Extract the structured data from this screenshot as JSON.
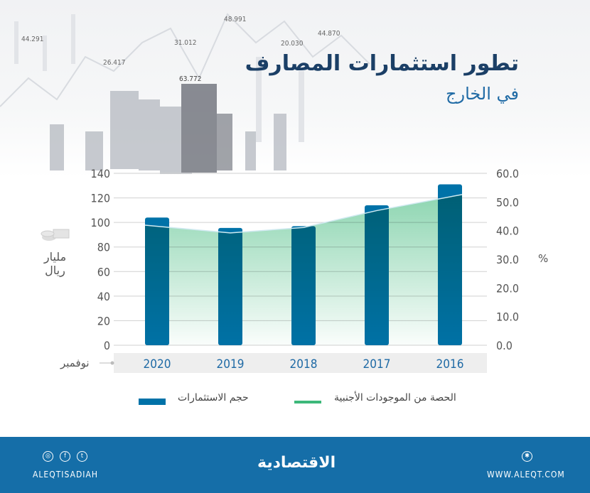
{
  "header": {
    "title": "تطور استثمارات المصارف",
    "subtitle": "في الخارج",
    "background_numbers": [
      "44.291",
      "26.417",
      "48.991",
      "31.012",
      "63.772",
      "44.870",
      "20.030"
    ]
  },
  "chart_data": {
    "type": "bar+area",
    "title": "تطور استثمارات المصارف في الخارج",
    "categories": [
      "2020",
      "2019",
      "2018",
      "2017",
      "2016"
    ],
    "xlabel": "نوفمبر",
    "ylabel": "مليار ريال",
    "y2label": "%",
    "ylim": [
      0,
      140
    ],
    "yticks": [
      "0",
      "20",
      "40",
      "60",
      "80",
      "100",
      "120",
      "140"
    ],
    "y2lim": [
      0,
      60
    ],
    "y2ticks": [
      "0.0",
      "10.0",
      "20.0",
      "30.0",
      "40.0",
      "50.0",
      "60.0"
    ],
    "grid": true,
    "legend_position": "bottom",
    "series": [
      {
        "name": "حجم الاستثمارات",
        "type": "bar",
        "axis": "left",
        "color": "#0072a8",
        "values": [
          104,
          95.5,
          97,
          114,
          131
        ]
      },
      {
        "name": "الحصة من الموجودات الأجنبية",
        "type": "area",
        "axis": "right",
        "color": "#3db87a",
        "values": [
          41.9,
          39.2,
          41.1,
          47.0,
          52.6
        ]
      }
    ]
  },
  "footer": {
    "handle": "ALEQTISADIAH",
    "logo": "الاقتصادية",
    "website": "WWW.ALEQT.COM",
    "bg": "#156ea8"
  }
}
